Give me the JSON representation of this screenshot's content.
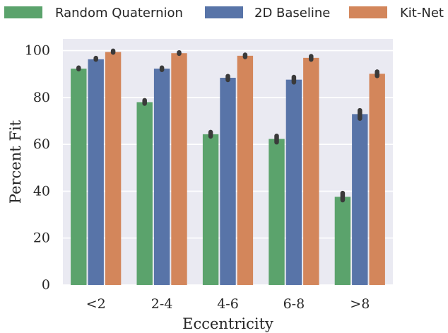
{
  "chart_data": {
    "type": "bar",
    "title": "",
    "xlabel": "Eccentricity",
    "ylabel": "Percent Fit",
    "categories": [
      "<2",
      "2-4",
      "4-6",
      "6-8",
      ">8"
    ],
    "ylim": [
      0,
      100
    ],
    "yticks": [
      0,
      20,
      40,
      60,
      80,
      100
    ],
    "yticks_labels": [
      "0",
      "20",
      "40",
      "60",
      "80",
      "100"
    ],
    "grid": true,
    "legend_position": "top",
    "series": [
      {
        "name": "Random Quaternion",
        "color": "#5ba36c",
        "values": [
          92.3,
          78.0,
          64.3,
          62.3,
          37.6
        ],
        "error_low": [
          92.1,
          77.4,
          63.4,
          60.9,
          36.2
        ],
        "error_high": [
          92.7,
          78.8,
          65.2,
          63.6,
          39.2
        ]
      },
      {
        "name": "2D Baseline",
        "color": "#5874a8",
        "values": [
          96.3,
          92.3,
          88.4,
          87.6,
          72.9
        ],
        "error_low": [
          96.2,
          91.8,
          87.5,
          86.5,
          71.0
        ],
        "error_high": [
          96.8,
          92.7,
          89.1,
          88.7,
          74.5
        ]
      },
      {
        "name": "Kit-Net",
        "color": "#d3865b",
        "values": [
          99.4,
          98.9,
          97.8,
          96.9,
          90.1
        ],
        "error_low": [
          99.2,
          98.7,
          97.3,
          96.2,
          89.2
        ],
        "error_high": [
          99.9,
          99.2,
          98.2,
          97.6,
          91.0
        ]
      }
    ],
    "background_color": "#eaeaf2",
    "grid_color": "#ffffff",
    "error_color": "#3a3a3a"
  }
}
